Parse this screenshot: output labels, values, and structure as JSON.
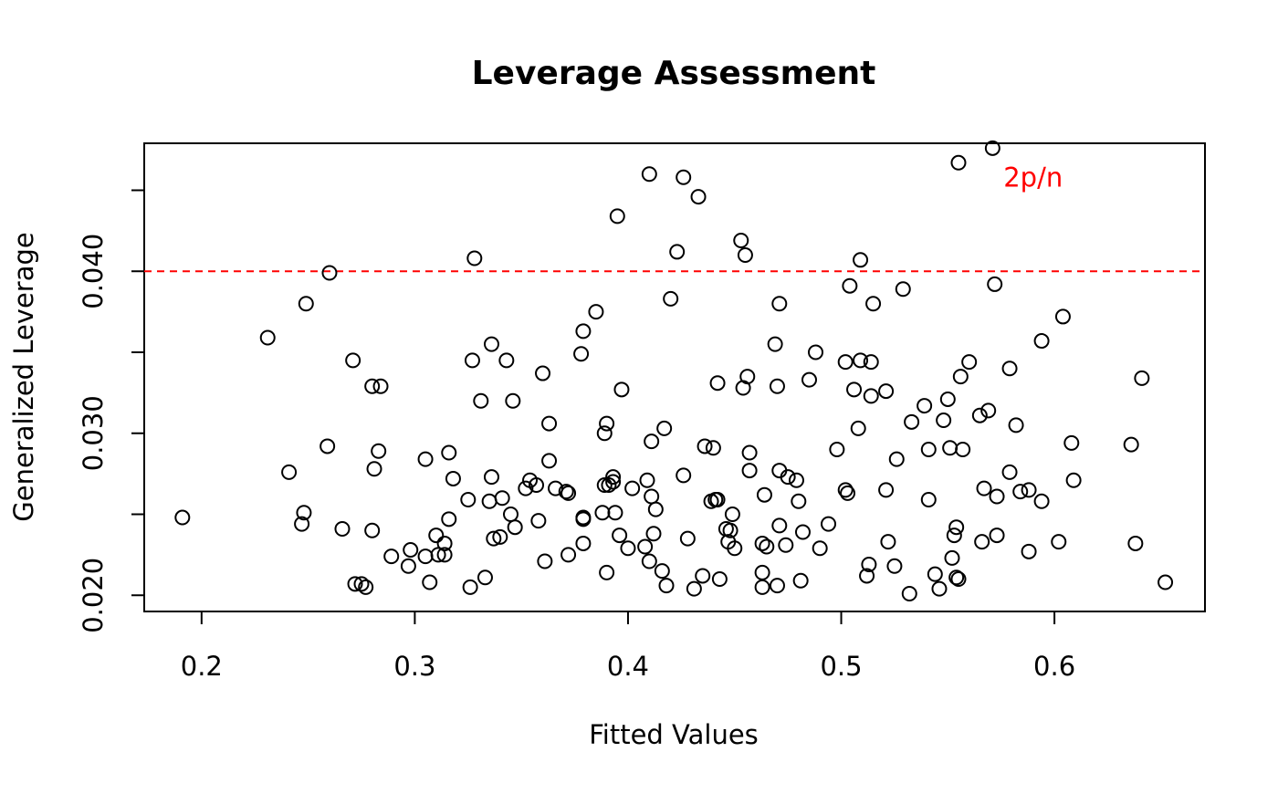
{
  "chart_data": {
    "type": "scatter",
    "title": "Leverage Assessment",
    "xlabel": "Fitted Values",
    "ylabel": "Generalized Leverage",
    "xlim": [
      0.1731,
      0.6706
    ],
    "ylim": [
      0.019,
      0.0479
    ],
    "xticks": [
      0.2,
      0.3,
      0.4,
      0.5,
      0.6
    ],
    "xtick_labels": [
      "0.2",
      "0.3",
      "0.4",
      "0.5",
      "0.6"
    ],
    "yticks": [
      0.02,
      0.025,
      0.03,
      0.035,
      0.04,
      0.045
    ],
    "ytick_labels": [
      "0.020",
      "",
      "0.030",
      "",
      "0.040",
      ""
    ],
    "grid": false,
    "reference_line": {
      "y": 0.04,
      "label": "2p/n",
      "color": "#ff0000",
      "style": "dashed"
    },
    "marker_color": "#000000",
    "points": [
      [
        0.191,
        0.0248
      ],
      [
        0.231,
        0.0359
      ],
      [
        0.241,
        0.0276
      ],
      [
        0.247,
        0.0244
      ],
      [
        0.248,
        0.0251
      ],
      [
        0.249,
        0.038
      ],
      [
        0.259,
        0.0292
      ],
      [
        0.26,
        0.0399
      ],
      [
        0.266,
        0.0241
      ],
      [
        0.271,
        0.0345
      ],
      [
        0.272,
        0.0207
      ],
      [
        0.275,
        0.0207
      ],
      [
        0.277,
        0.0205
      ],
      [
        0.28,
        0.024
      ],
      [
        0.28,
        0.0329
      ],
      [
        0.281,
        0.0278
      ],
      [
        0.283,
        0.0289
      ],
      [
        0.284,
        0.0329
      ],
      [
        0.289,
        0.0224
      ],
      [
        0.297,
        0.0218
      ],
      [
        0.298,
        0.0228
      ],
      [
        0.305,
        0.0284
      ],
      [
        0.305,
        0.0224
      ],
      [
        0.307,
        0.0208
      ],
      [
        0.31,
        0.0237
      ],
      [
        0.311,
        0.0225
      ],
      [
        0.314,
        0.0232
      ],
      [
        0.314,
        0.0225
      ],
      [
        0.316,
        0.0247
      ],
      [
        0.316,
        0.0288
      ],
      [
        0.318,
        0.0272
      ],
      [
        0.325,
        0.0259
      ],
      [
        0.326,
        0.0205
      ],
      [
        0.327,
        0.0345
      ],
      [
        0.328,
        0.0408
      ],
      [
        0.331,
        0.032
      ],
      [
        0.333,
        0.0211
      ],
      [
        0.335,
        0.0258
      ],
      [
        0.336,
        0.0273
      ],
      [
        0.336,
        0.0355
      ],
      [
        0.337,
        0.0235
      ],
      [
        0.34,
        0.0236
      ],
      [
        0.341,
        0.026
      ],
      [
        0.343,
        0.0345
      ],
      [
        0.345,
        0.025
      ],
      [
        0.346,
        0.032
      ],
      [
        0.347,
        0.0242
      ],
      [
        0.352,
        0.0266
      ],
      [
        0.354,
        0.0271
      ],
      [
        0.357,
        0.0268
      ],
      [
        0.358,
        0.0246
      ],
      [
        0.36,
        0.0337
      ],
      [
        0.361,
        0.0221
      ],
      [
        0.363,
        0.0306
      ],
      [
        0.363,
        0.0283
      ],
      [
        0.366,
        0.0266
      ],
      [
        0.371,
        0.0264
      ],
      [
        0.372,
        0.0263
      ],
      [
        0.372,
        0.0225
      ],
      [
        0.378,
        0.0349
      ],
      [
        0.379,
        0.0248
      ],
      [
        0.379,
        0.0247
      ],
      [
        0.379,
        0.0232
      ],
      [
        0.379,
        0.0363
      ],
      [
        0.385,
        0.0375
      ],
      [
        0.388,
        0.0251
      ],
      [
        0.389,
        0.03
      ],
      [
        0.389,
        0.0268
      ],
      [
        0.39,
        0.0214
      ],
      [
        0.39,
        0.0306
      ],
      [
        0.391,
        0.0268
      ],
      [
        0.393,
        0.0273
      ],
      [
        0.393,
        0.027
      ],
      [
        0.394,
        0.0251
      ],
      [
        0.395,
        0.0434
      ],
      [
        0.396,
        0.0237
      ],
      [
        0.397,
        0.0327
      ],
      [
        0.4,
        0.0229
      ],
      [
        0.402,
        0.0266
      ],
      [
        0.408,
        0.023
      ],
      [
        0.409,
        0.0271
      ],
      [
        0.41,
        0.0221
      ],
      [
        0.41,
        0.046
      ],
      [
        0.411,
        0.0295
      ],
      [
        0.411,
        0.0261
      ],
      [
        0.412,
        0.0238
      ],
      [
        0.413,
        0.0253
      ],
      [
        0.416,
        0.0215
      ],
      [
        0.417,
        0.0303
      ],
      [
        0.418,
        0.0206
      ],
      [
        0.42,
        0.0383
      ],
      [
        0.423,
        0.0412
      ],
      [
        0.426,
        0.0274
      ],
      [
        0.426,
        0.0458
      ],
      [
        0.428,
        0.0235
      ],
      [
        0.431,
        0.0204
      ],
      [
        0.433,
        0.0446
      ],
      [
        0.435,
        0.0212
      ],
      [
        0.436,
        0.0292
      ],
      [
        0.439,
        0.0258
      ],
      [
        0.44,
        0.0291
      ],
      [
        0.441,
        0.0259
      ],
      [
        0.442,
        0.0259
      ],
      [
        0.442,
        0.0331
      ],
      [
        0.443,
        0.021
      ],
      [
        0.446,
        0.0241
      ],
      [
        0.447,
        0.0233
      ],
      [
        0.448,
        0.024
      ],
      [
        0.449,
        0.025
      ],
      [
        0.45,
        0.0229
      ],
      [
        0.453,
        0.0419
      ],
      [
        0.454,
        0.0328
      ],
      [
        0.455,
        0.041
      ],
      [
        0.456,
        0.0335
      ],
      [
        0.457,
        0.0277
      ],
      [
        0.457,
        0.0288
      ],
      [
        0.463,
        0.0205
      ],
      [
        0.463,
        0.0232
      ],
      [
        0.463,
        0.0214
      ],
      [
        0.464,
        0.0262
      ],
      [
        0.465,
        0.023
      ],
      [
        0.469,
        0.0355
      ],
      [
        0.47,
        0.0329
      ],
      [
        0.47,
        0.0206
      ],
      [
        0.471,
        0.038
      ],
      [
        0.471,
        0.0277
      ],
      [
        0.471,
        0.0243
      ],
      [
        0.474,
        0.0231
      ],
      [
        0.475,
        0.0273
      ],
      [
        0.479,
        0.0271
      ],
      [
        0.48,
        0.0258
      ],
      [
        0.481,
        0.0209
      ],
      [
        0.482,
        0.0239
      ],
      [
        0.485,
        0.0333
      ],
      [
        0.488,
        0.035
      ],
      [
        0.49,
        0.0229
      ],
      [
        0.494,
        0.0244
      ],
      [
        0.498,
        0.029
      ],
      [
        0.502,
        0.0265
      ],
      [
        0.502,
        0.0344
      ],
      [
        0.503,
        0.0263
      ],
      [
        0.504,
        0.0391
      ],
      [
        0.506,
        0.0327
      ],
      [
        0.508,
        0.0303
      ],
      [
        0.509,
        0.0345
      ],
      [
        0.509,
        0.0407
      ],
      [
        0.512,
        0.0212
      ],
      [
        0.513,
        0.0219
      ],
      [
        0.514,
        0.0323
      ],
      [
        0.514,
        0.0344
      ],
      [
        0.515,
        0.038
      ],
      [
        0.521,
        0.0265
      ],
      [
        0.521,
        0.0326
      ],
      [
        0.522,
        0.0233
      ],
      [
        0.525,
        0.0218
      ],
      [
        0.526,
        0.0284
      ],
      [
        0.529,
        0.0389
      ],
      [
        0.532,
        0.0201
      ],
      [
        0.533,
        0.0307
      ],
      [
        0.539,
        0.0317
      ],
      [
        0.541,
        0.029
      ],
      [
        0.541,
        0.0259
      ],
      [
        0.544,
        0.0213
      ],
      [
        0.546,
        0.0204
      ],
      [
        0.548,
        0.0308
      ],
      [
        0.55,
        0.0321
      ],
      [
        0.551,
        0.0291
      ],
      [
        0.552,
        0.0223
      ],
      [
        0.553,
        0.0237
      ],
      [
        0.554,
        0.0242
      ],
      [
        0.554,
        0.0211
      ],
      [
        0.555,
        0.021
      ],
      [
        0.555,
        0.0467
      ],
      [
        0.556,
        0.0335
      ],
      [
        0.557,
        0.029
      ],
      [
        0.56,
        0.0344
      ],
      [
        0.565,
        0.0311
      ],
      [
        0.566,
        0.0233
      ],
      [
        0.567,
        0.0266
      ],
      [
        0.569,
        0.0314
      ],
      [
        0.571,
        0.0476
      ],
      [
        0.572,
        0.0392
      ],
      [
        0.573,
        0.0237
      ],
      [
        0.573,
        0.0261
      ],
      [
        0.579,
        0.0276
      ],
      [
        0.579,
        0.034
      ],
      [
        0.582,
        0.0305
      ],
      [
        0.584,
        0.0264
      ],
      [
        0.588,
        0.0265
      ],
      [
        0.588,
        0.0227
      ],
      [
        0.594,
        0.0258
      ],
      [
        0.594,
        0.0357
      ],
      [
        0.602,
        0.0233
      ],
      [
        0.604,
        0.0372
      ],
      [
        0.608,
        0.0294
      ],
      [
        0.609,
        0.0271
      ],
      [
        0.636,
        0.0293
      ],
      [
        0.638,
        0.0232
      ],
      [
        0.641,
        0.0334
      ],
      [
        0.652,
        0.0208
      ]
    ]
  }
}
